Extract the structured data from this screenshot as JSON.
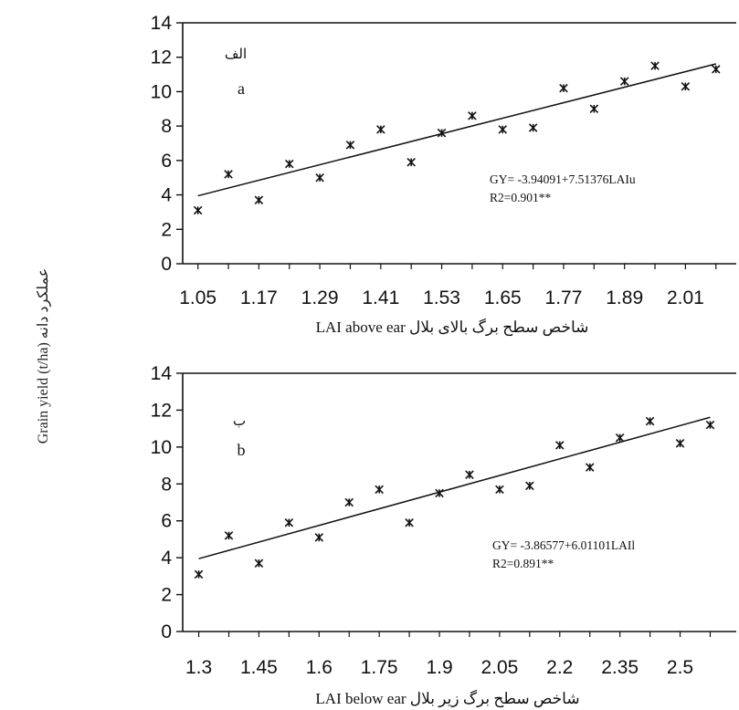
{
  "figure": {
    "shared_ylabel": "Grain yield (t/ha) عملکرد دانه"
  },
  "chart_data": [
    {
      "type": "scatter",
      "panel_tag_fa": "الف",
      "panel_tag": "a",
      "xlabel": "LAI above ear شاخص سطح برگ بالای بلال",
      "ylabel": "",
      "x_tick_labels": [
        "1.05",
        "1.17",
        "1.29",
        "1.41",
        "1.53",
        "1.65",
        "1.77",
        "1.89",
        "2.01"
      ],
      "xlim": [
        1.02,
        2.11
      ],
      "ylim": [
        0,
        14
      ],
      "y_ticks": [
        0,
        2,
        4,
        6,
        8,
        10,
        12,
        14
      ],
      "equation": "GY= -3.94091+7.51376LAIu",
      "r2": "R2=0.901**",
      "trendline": {
        "intercept": -3.94091,
        "slope": 7.51376
      },
      "series": [
        {
          "x": [
            1.05,
            1.11,
            1.17,
            1.23,
            1.29,
            1.35,
            1.41,
            1.47,
            1.53,
            1.59,
            1.65,
            1.71,
            1.77,
            1.83,
            1.89,
            1.95,
            2.01,
            2.07
          ],
          "y": [
            3.1,
            5.2,
            3.7,
            5.8,
            5.0,
            6.9,
            7.8,
            5.9,
            7.6,
            8.6,
            7.8,
            7.9,
            10.2,
            9.0,
            10.6,
            11.5,
            10.3,
            11.3
          ]
        }
      ],
      "grid": false,
      "legend": "none"
    },
    {
      "type": "scatter",
      "panel_tag_fa": "ب",
      "panel_tag": "b",
      "xlabel": "LAI below ear شاخص سطح برگ زیر بلال",
      "ylabel": "",
      "x_tick_labels": [
        "1.3",
        "1.45",
        "1.6",
        "1.75",
        "1.9",
        "2.05",
        "2.2",
        "2.35",
        "2.5"
      ],
      "xlim": [
        1.26,
        2.64
      ],
      "ylim": [
        0,
        14
      ],
      "y_ticks": [
        0,
        2,
        4,
        6,
        8,
        10,
        12,
        14
      ],
      "equation": "GY= -3.86577+6.01101LAIl",
      "r2": "R2=0.891**",
      "trendline": {
        "intercept": -3.86577,
        "slope": 6.01101
      },
      "series": [
        {
          "x": [
            1.3,
            1.375,
            1.45,
            1.525,
            1.6,
            1.675,
            1.75,
            1.825,
            1.9,
            1.975,
            2.05,
            2.125,
            2.2,
            2.275,
            2.35,
            2.425,
            2.5,
            2.575
          ],
          "y": [
            3.1,
            5.2,
            3.7,
            5.9,
            5.1,
            7.0,
            7.7,
            5.9,
            7.5,
            8.5,
            7.7,
            7.9,
            10.1,
            8.9,
            10.5,
            11.4,
            10.2,
            11.2
          ]
        }
      ],
      "grid": false,
      "legend": "none"
    }
  ]
}
